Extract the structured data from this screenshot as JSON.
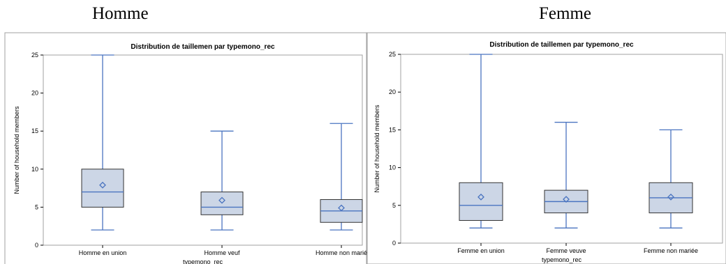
{
  "headings": [
    "Homme",
    "Femme"
  ],
  "chart_data": [
    {
      "type": "box",
      "title": "Distribution de taillemen par typemono_rec",
      "xlabel": "typemono_rec",
      "ylabel": "Number of household members",
      "ylim": [
        0,
        25
      ],
      "yticks": [
        0,
        5,
        10,
        15,
        20,
        25
      ],
      "grid": false,
      "legend": "none",
      "colors": {
        "fill": "#ccd6e6",
        "line": "#4a74c0",
        "frame": "#a0a0a0"
      },
      "categories": [
        "Homme en union",
        "Homme veuf",
        "Homme non marié"
      ],
      "boxes": [
        {
          "min": 2,
          "q1": 5,
          "median": 7,
          "q3": 10,
          "max": 25,
          "mean": 7.9
        },
        {
          "min": 2,
          "q1": 4,
          "median": 5,
          "q3": 7,
          "max": 15,
          "mean": 5.9
        },
        {
          "min": 2,
          "q1": 3,
          "median": 4.5,
          "q3": 6,
          "max": 16,
          "mean": 4.9
        }
      ]
    },
    {
      "type": "box",
      "title": "Distribution de taillemen par typemono_rec",
      "xlabel": "typemono_rec",
      "ylabel": "Number of household members",
      "ylim": [
        0,
        25
      ],
      "yticks": [
        0,
        5,
        10,
        15,
        20,
        25
      ],
      "grid": false,
      "legend": "none",
      "colors": {
        "fill": "#ccd6e6",
        "line": "#4a74c0",
        "frame": "#a0a0a0"
      },
      "categories": [
        "Femme en union",
        "Femme veuve",
        "Femme non mariée"
      ],
      "boxes": [
        {
          "min": 2,
          "q1": 3,
          "median": 5,
          "q3": 8,
          "max": 25,
          "mean": 6.1
        },
        {
          "min": 2,
          "q1": 4,
          "median": 5.5,
          "q3": 7,
          "max": 16,
          "mean": 5.8
        },
        {
          "min": 2,
          "q1": 4,
          "median": 6,
          "q3": 8,
          "max": 15,
          "mean": 6.1
        }
      ]
    }
  ]
}
